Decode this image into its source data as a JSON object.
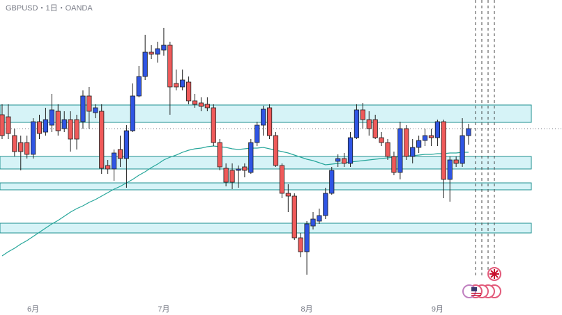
{
  "chart_data": {
    "type": "candlestick",
    "title": "GBPUSD・1日・OANDA",
    "categories": [
      null,
      null,
      null,
      null,
      null,
      "6月",
      null,
      null,
      null,
      null,
      null,
      null,
      null,
      null,
      null,
      null,
      null,
      null,
      null,
      null,
      null,
      null,
      null,
      null,
      null,
      null,
      "7月",
      null,
      null,
      null,
      null,
      null,
      null,
      null,
      null,
      null,
      null,
      null,
      null,
      null,
      null,
      null,
      null,
      null,
      null,
      null,
      null,
      null,
      null,
      "8月",
      null,
      null,
      null,
      null,
      null,
      null,
      null,
      null,
      null,
      null,
      null,
      null,
      null,
      null,
      null,
      null,
      null,
      null,
      null,
      null,
      "9月",
      null,
      null,
      null,
      null,
      null
    ],
    "open": [
      285,
      282,
      255,
      245,
      245,
      228,
      275,
      260,
      270,
      290,
      265,
      278,
      278,
      275,
      312,
      288,
      290,
      212,
      207,
      235,
      222,
      262,
      312,
      340,
      375,
      372,
      378,
      385,
      330,
      325,
      332,
      305,
      302,
      300,
      295,
      245,
      208,
      205,
      205,
      210,
      202,
      245,
      270,
      295,
      255,
      212,
      172,
      168,
      108,
      88,
      125,
      132,
      140,
      172,
      218,
      222,
      215,
      252,
      292,
      278,
      278,
      252,
      245,
      225,
      202,
      265,
      225,
      238,
      248,
      255,
      252,
      275,
      192,
      220,
      215,
      255
    ],
    "high": [
      300,
      300,
      265,
      255,
      255,
      280,
      285,
      295,
      315,
      300,
      290,
      290,
      285,
      320,
      325,
      300,
      300,
      220,
      235,
      255,
      270,
      330,
      355,
      400,
      385,
      390,
      410,
      390,
      350,
      350,
      340,
      315,
      310,
      310,
      300,
      250,
      215,
      215,
      212,
      215,
      250,
      275,
      298,
      300,
      260,
      215,
      185,
      172,
      115,
      132,
      145,
      150,
      180,
      210,
      228,
      230,
      260,
      300,
      302,
      290,
      285,
      260,
      250,
      232,
      275,
      270,
      250,
      255,
      265,
      265,
      278,
      278,
      225,
      225,
      280,
      272
    ],
    "low": [
      250,
      250,
      225,
      205,
      222,
      222,
      250,
      255,
      260,
      255,
      260,
      232,
      235,
      265,
      265,
      280,
      200,
      200,
      190,
      210,
      180,
      260,
      310,
      335,
      365,
      360,
      370,
      285,
      320,
      320,
      300,
      295,
      290,
      290,
      240,
      205,
      182,
      178,
      180,
      195,
      200,
      240,
      255,
      250,
      210,
      165,
      145,
      105,
      80,
      55,
      120,
      128,
      135,
      170,
      210,
      210,
      210,
      250,
      265,
      255,
      250,
      240,
      220,
      198,
      192,
      220,
      215,
      230,
      240,
      240,
      240,
      165,
      160,
      210,
      210,
      242
    ],
    "close": [
      255,
      258,
      232,
      232,
      228,
      275,
      258,
      278,
      292,
      262,
      278,
      250,
      250,
      312,
      290,
      295,
      208,
      207,
      230,
      222,
      262,
      312,
      340,
      375,
      372,
      380,
      385,
      325,
      325,
      335,
      305,
      300,
      297,
      295,
      245,
      210,
      188,
      188,
      207,
      205,
      245,
      270,
      293,
      255,
      212,
      172,
      168,
      108,
      88,
      128,
      135,
      140,
      172,
      205,
      222,
      215,
      252,
      292,
      278,
      265,
      252,
      245,
      225,
      202,
      265,
      225,
      238,
      248,
      255,
      252,
      275,
      192,
      220,
      215,
      255,
      265
    ],
    "up_color": "#2f55e4",
    "down_color": "#ef5a5a",
    "outline_color": "#1e1e1e",
    "series": [
      {
        "color": "#26a69a",
        "values": [
          82,
          88,
          93,
          99,
          104,
          110,
          116,
          122,
          128,
          133,
          139,
          145,
          150,
          154,
          159,
          163,
          168,
          173,
          178,
          182,
          187,
          192,
          198,
          203,
          209,
          214,
          220,
          224,
          227,
          231,
          234,
          236,
          237,
          239,
          240,
          239,
          238,
          236,
          235,
          236,
          237,
          237,
          238,
          236,
          234,
          232,
          230,
          227,
          224,
          221,
          219,
          216,
          213,
          214,
          215,
          216,
          217,
          218,
          219,
          220,
          221,
          222,
          223,
          224,
          225,
          226,
          226,
          227,
          228,
          228,
          229,
          229,
          230,
          230,
          231,
          231
        ]
      }
    ],
    "zones": [
      [
        274,
        299
      ],
      [
        207,
        225
      ],
      [
        177,
        187
      ],
      [
        115,
        129
      ]
    ],
    "zone_fill": "#d6f3f7",
    "zone_stroke": "#1c8f8f",
    "last_price": 265,
    "ylim": [
      -3,
      450
    ]
  }
}
